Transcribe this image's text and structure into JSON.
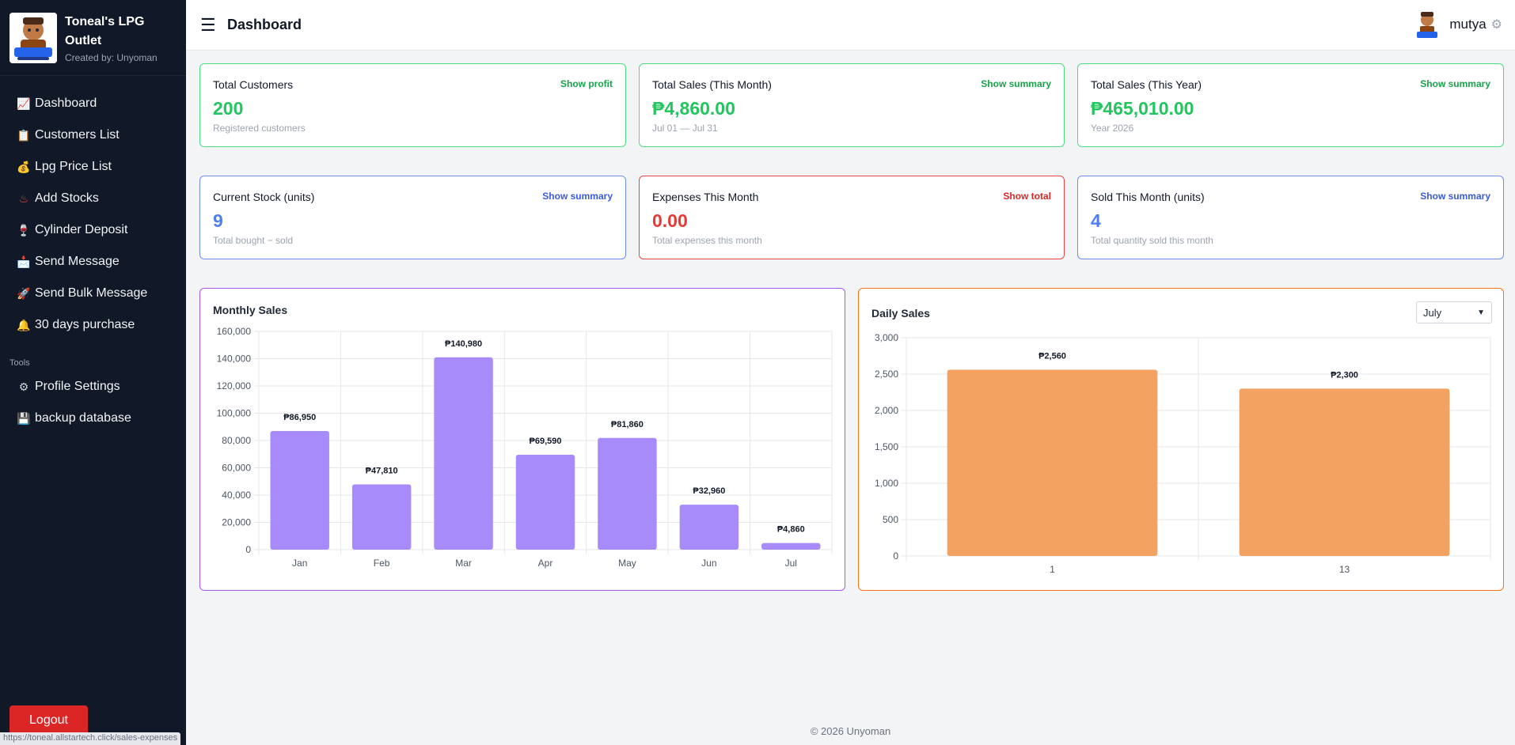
{
  "brand": {
    "title": "Toneal's LPG Outlet",
    "subtitle": "Created by: Unyoman"
  },
  "nav": [
    {
      "label": "Dashboard",
      "icon": "📈",
      "icon_name": "chart-icon"
    },
    {
      "label": "Customers List",
      "icon": "📋",
      "icon_name": "clipboard-icon"
    },
    {
      "label": "Lpg Price List",
      "icon": "💰",
      "icon_name": "money-bag-icon"
    },
    {
      "label": "Add Stocks",
      "icon": "♨",
      "icon_name": "hot-springs-icon"
    },
    {
      "label": "Cylinder Deposit",
      "icon": "🍷",
      "icon_name": "cylinder-icon"
    },
    {
      "label": "Send Message",
      "icon": "📩",
      "icon_name": "envelope-icon"
    },
    {
      "label": "Send Bulk Message",
      "icon": "🚀",
      "icon_name": "rocket-icon"
    },
    {
      "label": "30 days purchase",
      "icon": "🔔",
      "icon_name": "bell-icon"
    }
  ],
  "tools_section": "Tools",
  "tools": [
    {
      "label": "Profile Settings",
      "icon": "⚙",
      "icon_name": "gear-icon"
    },
    {
      "label": "backup database",
      "icon": "💾",
      "icon_name": "floppy-disk-icon"
    }
  ],
  "logout_label": "Logout",
  "status_url": "https://toneal.allstartech.click/sales-expenses",
  "header": {
    "title": "Dashboard",
    "menu_icon": "☰",
    "user_name": "mutya",
    "gear_icon": "⚙"
  },
  "cards": [
    {
      "title": "Total Customers",
      "link": "Show profit",
      "value": "200",
      "sub": "Registered customers",
      "color": "#22c55e"
    },
    {
      "title": "Total Sales (This Month)",
      "link": "Show summary",
      "value": "₱4,860.00",
      "sub": "Jul 01 — Jul 31",
      "color": "#22c55e"
    },
    {
      "title": "Total Sales (This Year)",
      "link": "Show summary",
      "value": "₱465,010.00",
      "sub": "Year 2026",
      "color": "#22c55e"
    },
    {
      "title": "Current Stock (units)",
      "link": "Show summary",
      "value": "9",
      "sub": "Total bought − sold",
      "color": "#4f7ef0"
    },
    {
      "title": "Expenses This Month",
      "link": "Show total",
      "value": "0.00",
      "sub": "Total expenses this month",
      "color": "#e53935"
    },
    {
      "title": "Sold This Month (units)",
      "link": "Show summary",
      "value": "4",
      "sub": "Total quantity sold this month",
      "color": "#4f7ef0"
    }
  ],
  "monthly_panel": {
    "title": "Monthly Sales",
    "border_color": "#a855f7",
    "bar_color": "#a78bfa"
  },
  "daily_panel": {
    "title": "Daily Sales",
    "border_color": "#f97316",
    "bar_color": "#f4a261",
    "selected_month": "July"
  },
  "footer": "© 2026 Unyoman",
  "chart_data": [
    {
      "type": "bar",
      "title": "Monthly Sales",
      "categories": [
        "Jan",
        "Feb",
        "Mar",
        "Apr",
        "May",
        "Jun",
        "Jul"
      ],
      "values": [
        86950,
        47810,
        140980,
        69590,
        81860,
        32960,
        4860
      ],
      "data_labels": [
        "₱86,950",
        "₱47,810",
        "₱140,980",
        "₱69,590",
        "₱81,860",
        "₱32,960",
        "₱4,860"
      ],
      "ylim": [
        0,
        160000
      ],
      "yticks": [
        0,
        20000,
        40000,
        60000,
        80000,
        100000,
        120000,
        140000,
        160000
      ],
      "ytick_labels": [
        "0",
        "20,000",
        "40,000",
        "60,000",
        "80,000",
        "100,000",
        "120,000",
        "140,000",
        "160,000"
      ],
      "xlabel": "",
      "ylabel": "",
      "grid": true
    },
    {
      "type": "bar",
      "title": "Daily Sales",
      "categories": [
        "1",
        "13"
      ],
      "values": [
        2560,
        2300
      ],
      "data_labels": [
        "₱2,560",
        "₱2,300"
      ],
      "ylim": [
        0,
        3000
      ],
      "yticks": [
        0,
        500,
        1000,
        1500,
        2000,
        2500,
        3000
      ],
      "ytick_labels": [
        "0",
        "500",
        "1,000",
        "1,500",
        "2,000",
        "2,500",
        "3,000"
      ],
      "xlabel": "",
      "ylabel": "",
      "grid": true
    }
  ]
}
